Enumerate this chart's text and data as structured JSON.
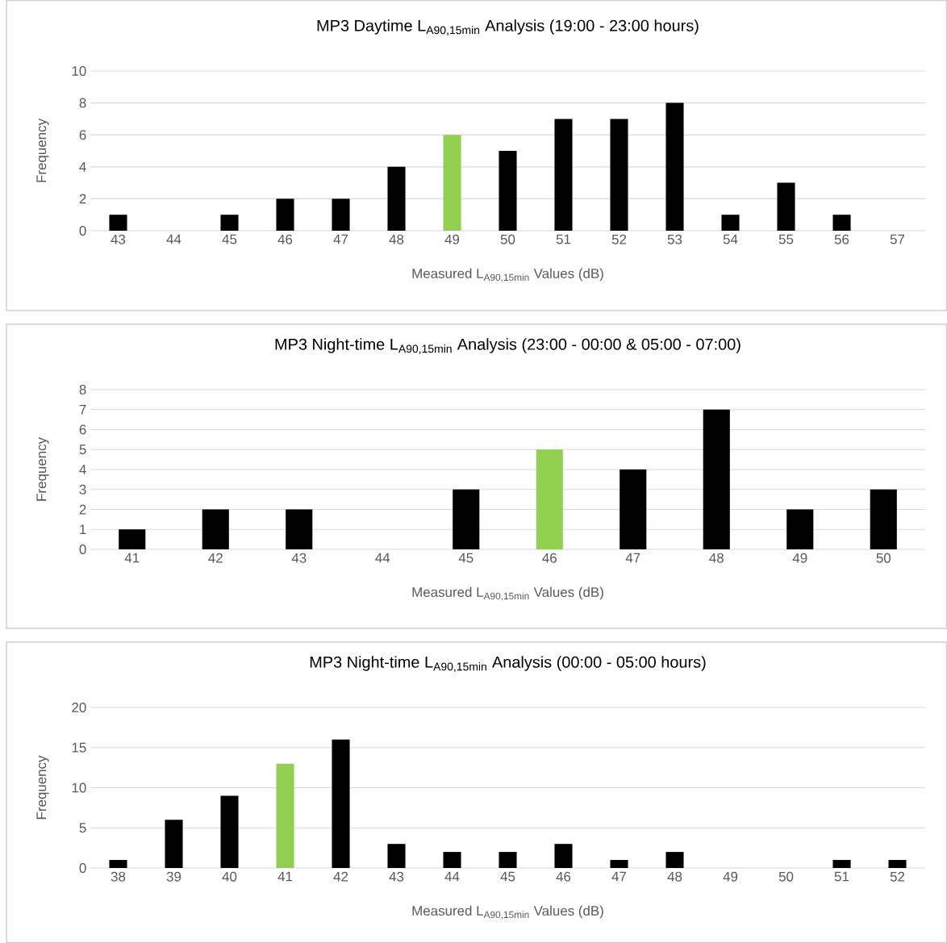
{
  "chart_data": [
    {
      "type": "bar",
      "title": "MP3 Daytime L$_{A90,15min}$ Analysis (19:00 - 23:00 hours)",
      "xlabel": "Measured L$_{A90,15min}$ Values (dB)",
      "ylabel": "Frequency",
      "categories": [
        "43",
        "44",
        "45",
        "46",
        "47",
        "48",
        "49",
        "50",
        "51",
        "52",
        "53",
        "54",
        "55",
        "56",
        "57"
      ],
      "values": [
        1,
        0,
        1,
        2,
        2,
        4,
        6,
        5,
        7,
        7,
        8,
        1,
        3,
        1,
        0
      ],
      "colors": [
        "#000000",
        "#000000",
        "#000000",
        "#000000",
        "#000000",
        "#000000",
        "#92d050",
        "#000000",
        "#000000",
        "#000000",
        "#000000",
        "#000000",
        "#000000",
        "#000000",
        "#000000"
      ],
      "ylim": [
        0,
        10
      ],
      "yticks": [
        0,
        2,
        4,
        6,
        8,
        10
      ],
      "grid": "y"
    },
    {
      "type": "bar",
      "title": "MP3 Night-time L$_{A90,15min}$ Analysis (23:00 - 00:00 & 05:00 - 07:00)",
      "xlabel": "Measured L$_{A90,15min}$ Values (dB)",
      "ylabel": "Frequency",
      "categories": [
        "41",
        "42",
        "43",
        "44",
        "45",
        "46",
        "47",
        "48",
        "49",
        "50"
      ],
      "values": [
        1,
        2,
        2,
        0,
        3,
        5,
        4,
        7,
        2,
        3
      ],
      "colors": [
        "#000000",
        "#000000",
        "#000000",
        "#000000",
        "#000000",
        "#92d050",
        "#000000",
        "#000000",
        "#000000",
        "#000000"
      ],
      "ylim": [
        0,
        8
      ],
      "yticks": [
        0,
        1,
        2,
        3,
        4,
        5,
        6,
        7,
        8
      ],
      "grid": "y"
    },
    {
      "type": "bar",
      "title": "MP3 Night-time L$_{A90,15min}$ Analysis (00:00 - 05:00 hours)",
      "xlabel": "Measured L$_{A90,15min}$ Values (dB)",
      "ylabel": "Frequency",
      "categories": [
        "38",
        "39",
        "40",
        "41",
        "42",
        "43",
        "44",
        "45",
        "46",
        "47",
        "48",
        "49",
        "50",
        "51",
        "52"
      ],
      "values": [
        1,
        6,
        9,
        13,
        16,
        3,
        2,
        2,
        3,
        1,
        2,
        0,
        0,
        1,
        1
      ],
      "colors": [
        "#000000",
        "#000000",
        "#000000",
        "#92d050",
        "#000000",
        "#000000",
        "#000000",
        "#000000",
        "#000000",
        "#000000",
        "#000000",
        "#000000",
        "#000000",
        "#000000",
        "#000000"
      ],
      "ylim": [
        0,
        20
      ],
      "yticks": [
        0,
        5,
        10,
        15,
        20
      ],
      "grid": "y"
    }
  ]
}
